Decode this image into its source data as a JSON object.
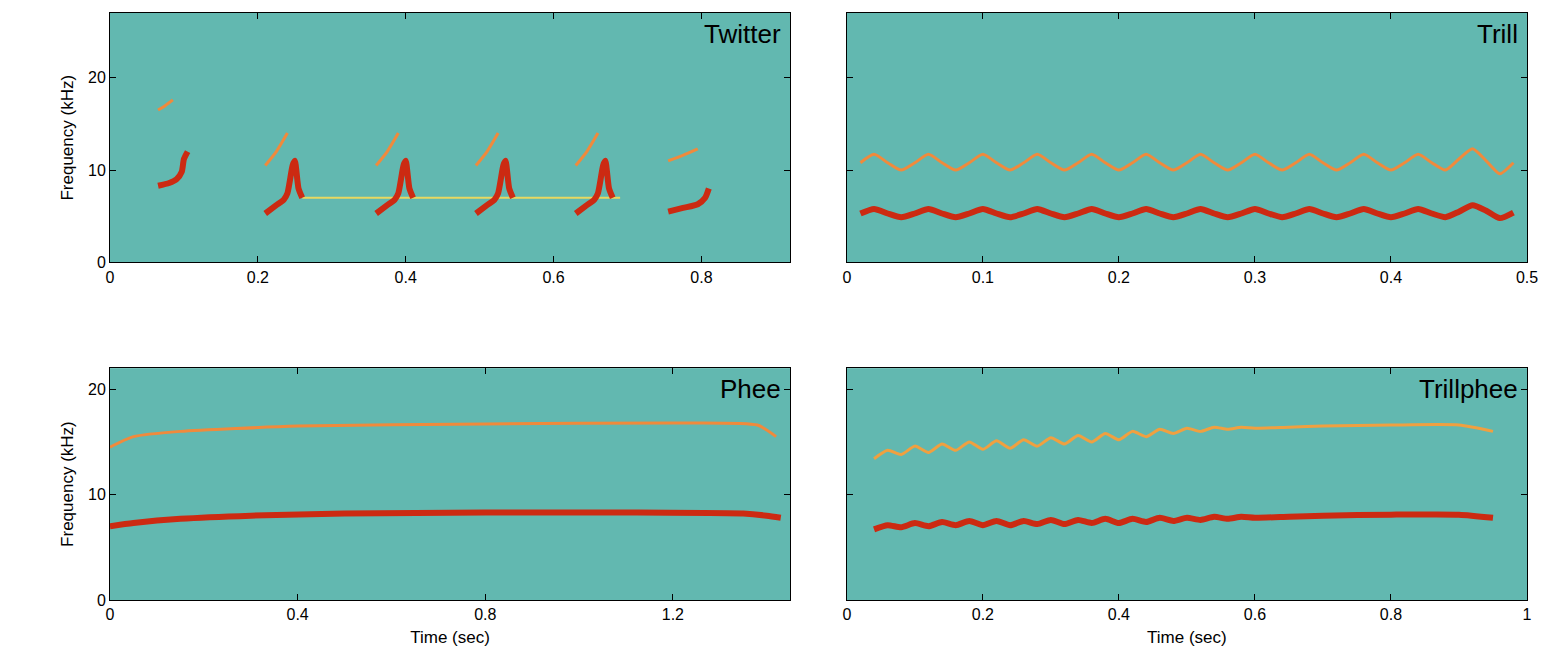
{
  "chart_data": [
    {
      "type": "line",
      "title": "Twitter",
      "ylabel": "Frequency (kHz)",
      "grid": false,
      "tick_labels": true,
      "xlim": [
        0,
        0.92
      ],
      "xticks": [
        0,
        0.2,
        0.4,
        0.6,
        0.8
      ],
      "ylim": [
        0,
        27
      ],
      "yticks": [
        0,
        10,
        20
      ],
      "series": [
        {
          "color": "#e8d860",
          "line_style": "faint",
          "x": [
            0.26,
            0.69
          ],
          "values": [
            7,
            7
          ]
        },
        {
          "color": "#f08a3c",
          "line_style": "thin",
          "x": [
            0.065,
            0.075,
            0.085,
            null,
            0.21,
            0.225,
            0.24,
            null,
            0.36,
            0.375,
            0.39,
            null,
            0.495,
            0.51,
            0.525,
            null,
            0.63,
            0.645,
            0.66,
            null,
            0.755,
            0.775,
            0.795
          ],
          "values": [
            16.5,
            17,
            17.6,
            null,
            10.5,
            12,
            14,
            null,
            10.5,
            12,
            14,
            null,
            10.5,
            12,
            14,
            null,
            10.5,
            12,
            14,
            null,
            11,
            11.6,
            12.3
          ]
        },
        {
          "color": "#cc2a12",
          "line_style": "thick",
          "x": [
            0.065,
            0.08,
            0.09,
            0.097,
            0.1,
            0.105,
            null,
            0.21,
            0.225,
            0.235,
            0.24,
            0.247,
            0.25,
            0.255,
            0.26,
            null,
            0.36,
            0.375,
            0.385,
            0.39,
            0.397,
            0.4,
            0.405,
            0.41,
            null,
            0.495,
            0.51,
            0.52,
            0.525,
            0.532,
            0.535,
            0.54,
            0.545,
            null,
            0.63,
            0.645,
            0.655,
            0.66,
            0.667,
            0.67,
            0.675,
            0.68,
            null,
            0.755,
            0.775,
            0.795,
            0.805,
            0.81
          ],
          "values": [
            8.3,
            8.6,
            9.0,
            9.8,
            11.2,
            12,
            null,
            5.3,
            6.2,
            6.8,
            7.5,
            10.5,
            11,
            8,
            7,
            null,
            5.3,
            6.2,
            6.8,
            7.5,
            10.5,
            11,
            8,
            7,
            null,
            5.3,
            6.2,
            6.8,
            7.5,
            10.5,
            11,
            8,
            7,
            null,
            5.3,
            6.2,
            6.8,
            7.5,
            10.5,
            11,
            8,
            7,
            null,
            5.5,
            5.9,
            6.3,
            7,
            8
          ]
        }
      ]
    },
    {
      "type": "line",
      "title": "Trill",
      "grid": false,
      "tick_labels": "x",
      "xlim": [
        0,
        0.5
      ],
      "xticks": [
        0,
        0.1,
        0.2,
        0.3,
        0.4,
        0.5
      ],
      "ylim": [
        0,
        27
      ],
      "yticks": [
        0,
        10,
        20
      ],
      "series": [
        {
          "color": "#f08a3c",
          "line_style": "thin",
          "x": [
            0.01,
            0.02,
            0.03,
            0.04,
            0.05,
            0.06,
            0.07,
            0.08,
            0.09,
            0.1,
            0.11,
            0.12,
            0.13,
            0.14,
            0.15,
            0.16,
            0.17,
            0.18,
            0.19,
            0.2,
            0.21,
            0.22,
            0.23,
            0.24,
            0.25,
            0.26,
            0.27,
            0.28,
            0.29,
            0.3,
            0.31,
            0.32,
            0.33,
            0.34,
            0.35,
            0.36,
            0.37,
            0.38,
            0.39,
            0.4,
            0.41,
            0.42,
            0.43,
            0.44,
            0.45,
            0.46,
            0.47,
            0.48,
            0.49
          ],
          "values": [
            10.8,
            11.7,
            10.8,
            10.0,
            10.8,
            11.7,
            10.8,
            10.0,
            10.8,
            11.7,
            10.8,
            10.0,
            10.8,
            11.7,
            10.8,
            10.0,
            10.8,
            11.7,
            10.8,
            10.0,
            10.8,
            11.7,
            10.8,
            10.0,
            10.8,
            11.7,
            10.8,
            10.0,
            10.8,
            11.7,
            10.8,
            10.0,
            10.8,
            11.7,
            10.8,
            10.0,
            10.8,
            11.7,
            10.8,
            10.0,
            10.8,
            11.7,
            10.8,
            10.0,
            11.2,
            12.3,
            11.0,
            9.6,
            10.8
          ]
        },
        {
          "color": "#cc2a12",
          "line_style": "thick",
          "x": [
            0.01,
            0.02,
            0.03,
            0.04,
            0.05,
            0.06,
            0.07,
            0.08,
            0.09,
            0.1,
            0.11,
            0.12,
            0.13,
            0.14,
            0.15,
            0.16,
            0.17,
            0.18,
            0.19,
            0.2,
            0.21,
            0.22,
            0.23,
            0.24,
            0.25,
            0.26,
            0.27,
            0.28,
            0.29,
            0.3,
            0.31,
            0.32,
            0.33,
            0.34,
            0.35,
            0.36,
            0.37,
            0.38,
            0.39,
            0.4,
            0.41,
            0.42,
            0.43,
            0.44,
            0.45,
            0.46,
            0.47,
            0.48,
            0.49
          ],
          "values": [
            5.3,
            5.8,
            5.3,
            4.9,
            5.3,
            5.8,
            5.3,
            4.9,
            5.3,
            5.8,
            5.3,
            4.9,
            5.3,
            5.8,
            5.3,
            4.9,
            5.3,
            5.8,
            5.3,
            4.9,
            5.3,
            5.8,
            5.3,
            4.9,
            5.3,
            5.8,
            5.3,
            4.9,
            5.3,
            5.8,
            5.3,
            4.9,
            5.3,
            5.8,
            5.3,
            4.9,
            5.3,
            5.8,
            5.3,
            4.9,
            5.3,
            5.8,
            5.3,
            4.9,
            5.5,
            6.2,
            5.6,
            4.8,
            5.4
          ]
        }
      ]
    },
    {
      "type": "line",
      "title": "Phee",
      "xlabel": "Time (sec)",
      "ylabel": "Frequency (kHz)",
      "grid": false,
      "tick_labels": true,
      "xlim": [
        0,
        1.45
      ],
      "xticks": [
        0,
        0.4,
        0.8,
        1.2
      ],
      "ylim": [
        0,
        22
      ],
      "yticks": [
        0,
        10,
        20
      ],
      "series": [
        {
          "color": "#f08a3c",
          "line_style": "thin",
          "x": [
            0,
            0.05,
            0.15,
            0.4,
            0.8,
            1.2,
            1.38,
            1.42
          ],
          "values": [
            14.5,
            15.5,
            16,
            16.5,
            16.7,
            16.8,
            16.6,
            15.5
          ]
        },
        {
          "color": "#cc2a12",
          "line_style": "thick",
          "x": [
            0,
            0.05,
            0.15,
            0.3,
            0.5,
            0.8,
            1.1,
            1.35,
            1.4,
            1.43
          ],
          "values": [
            7,
            7.3,
            7.7,
            8,
            8.2,
            8.3,
            8.3,
            8.2,
            8,
            7.8
          ]
        }
      ]
    },
    {
      "type": "line",
      "title": "Trillphee",
      "xlabel": "Time (sec)",
      "grid": false,
      "tick_labels": "x",
      "xlim": [
        0,
        1
      ],
      "xticks": [
        0,
        0.2,
        0.4,
        0.6,
        0.8,
        1
      ],
      "ylim": [
        0,
        22
      ],
      "yticks": [
        0,
        10,
        20
      ],
      "series": [
        {
          "color": "#f0a040",
          "line_style": "thin",
          "x": [
            0.04,
            0.06,
            0.08,
            0.1,
            0.12,
            0.14,
            0.16,
            0.18,
            0.2,
            0.22,
            0.24,
            0.26,
            0.28,
            0.3,
            0.32,
            0.34,
            0.36,
            0.38,
            0.4,
            0.42,
            0.44,
            0.46,
            0.48,
            0.5,
            0.52,
            0.54,
            0.56,
            0.58,
            0.6,
            0.65,
            0.7,
            0.8,
            0.9,
            0.95
          ],
          "values": [
            13.4,
            14.2,
            13.8,
            14.6,
            14.0,
            14.8,
            14.2,
            15.0,
            14.3,
            15.1,
            14.4,
            15.2,
            14.6,
            15.4,
            14.8,
            15.6,
            15.0,
            15.8,
            15.2,
            16.0,
            15.5,
            16.2,
            15.8,
            16.3,
            16.0,
            16.4,
            16.2,
            16.4,
            16.3,
            16.4,
            16.5,
            16.6,
            16.6,
            16.0
          ]
        },
        {
          "color": "#cc2a12",
          "line_style": "thick",
          "x": [
            0.04,
            0.06,
            0.08,
            0.1,
            0.12,
            0.14,
            0.16,
            0.18,
            0.2,
            0.22,
            0.24,
            0.26,
            0.28,
            0.3,
            0.32,
            0.34,
            0.36,
            0.38,
            0.4,
            0.42,
            0.44,
            0.46,
            0.48,
            0.5,
            0.52,
            0.54,
            0.56,
            0.58,
            0.6,
            0.65,
            0.7,
            0.8,
            0.9,
            0.95
          ],
          "values": [
            6.7,
            7.1,
            6.9,
            7.3,
            7.0,
            7.4,
            7.1,
            7.5,
            7.1,
            7.5,
            7.1,
            7.5,
            7.2,
            7.6,
            7.2,
            7.6,
            7.3,
            7.7,
            7.3,
            7.7,
            7.4,
            7.8,
            7.5,
            7.8,
            7.6,
            7.9,
            7.7,
            7.9,
            7.8,
            7.9,
            8.0,
            8.1,
            8.1,
            7.8
          ]
        }
      ]
    }
  ]
}
